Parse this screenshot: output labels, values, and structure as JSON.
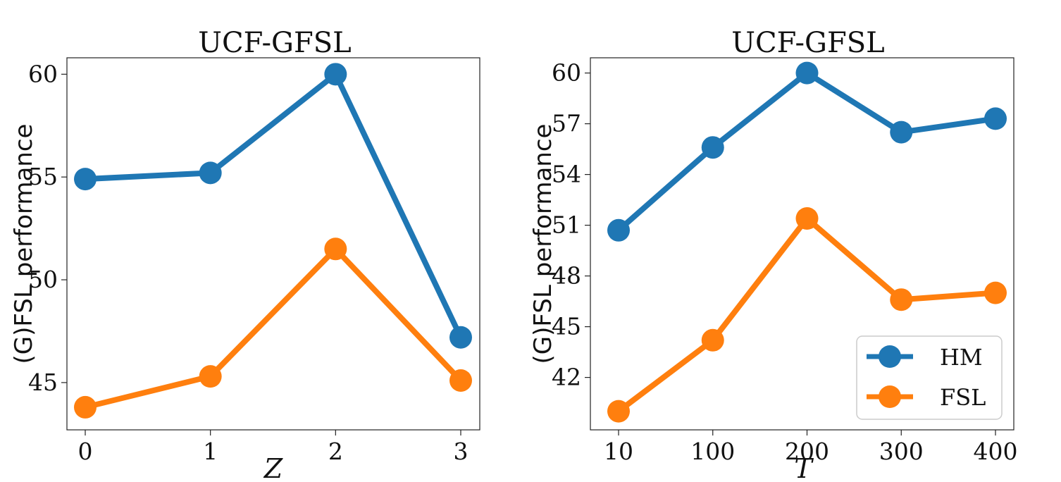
{
  "chart_data": [
    {
      "type": "line",
      "title": "UCF-GFSL",
      "xlabel": "Z",
      "ylabel": "(G)FSL performance",
      "categories": [
        "0",
        "1",
        "2",
        "3"
      ],
      "yticks": [
        45,
        50,
        55,
        60
      ],
      "ylim": [
        42.7,
        60.8
      ],
      "grid": false,
      "series": [
        {
          "name": "HM",
          "color": "#1f77b4",
          "values": [
            54.9,
            55.2,
            60.0,
            47.2
          ]
        },
        {
          "name": "FSL",
          "color": "#ff7f0e",
          "values": [
            43.8,
            45.3,
            51.5,
            45.1
          ]
        }
      ]
    },
    {
      "type": "line",
      "title": "UCF-GFSL",
      "xlabel": "T",
      "ylabel": "(G)FSL performance",
      "categories": [
        "10",
        "100",
        "200",
        "300",
        "400"
      ],
      "yticks": [
        42,
        45,
        48,
        51,
        54,
        57,
        60
      ],
      "ylim": [
        38.9,
        60.9
      ],
      "grid": false,
      "legend": "bottom-right",
      "series": [
        {
          "name": "HM",
          "color": "#1f77b4",
          "values": [
            50.7,
            55.6,
            60.0,
            56.5,
            57.3
          ]
        },
        {
          "name": "FSL",
          "color": "#ff7f0e",
          "values": [
            40.0,
            44.2,
            51.4,
            46.6,
            47.0
          ]
        }
      ]
    }
  ]
}
